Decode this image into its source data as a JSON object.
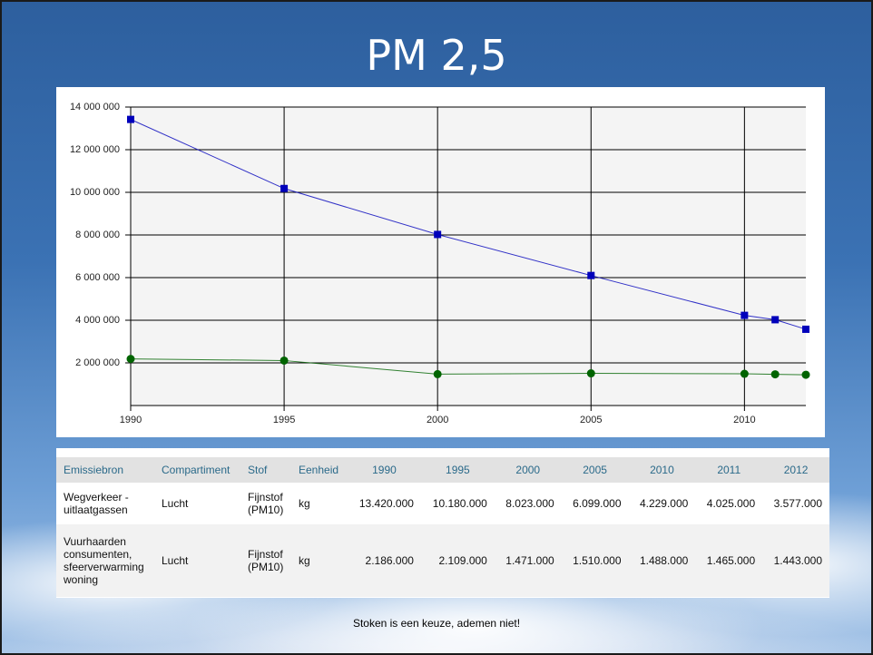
{
  "slide": {
    "title": "PM 2,5",
    "footer": "Stoken is een keuze, ademen niet!"
  },
  "chart_data": {
    "type": "line",
    "x": [
      1990,
      1995,
      2000,
      2005,
      2010,
      2011,
      2012
    ],
    "xlim": [
      1990,
      2012
    ],
    "xticks": [
      1990,
      1995,
      2000,
      2005,
      2010
    ],
    "ylim": [
      0,
      14000000
    ],
    "yticks": [
      {
        "value": 2000000,
        "label": "2 000 000"
      },
      {
        "value": 4000000,
        "label": "4 000 000"
      },
      {
        "value": 6000000,
        "label": "6 000 000"
      },
      {
        "value": 8000000,
        "label": "8 000 000"
      },
      {
        "value": 10000000,
        "label": "10 000 000"
      },
      {
        "value": 12000000,
        "label": "12 000 000"
      },
      {
        "value": 14000000,
        "label": "14 000 000"
      }
    ],
    "grid": true,
    "series": [
      {
        "color": "#0000bb",
        "marker": "square",
        "values": [
          13420000,
          10180000,
          8023000,
          6099000,
          4229000,
          4025000,
          3577000
        ]
      },
      {
        "color": "#006400",
        "marker": "circle",
        "values": [
          2186000,
          2109000,
          1471000,
          1510000,
          1488000,
          1465000,
          1443000
        ]
      }
    ]
  },
  "table": {
    "header": [
      "Emissiebron",
      "Compartiment",
      "Stof",
      "Eenheid",
      "1990",
      "1995",
      "2000",
      "2005",
      "2010",
      "2011",
      "2012"
    ],
    "rows": [
      [
        "Wegverkeer - uitlaatgassen",
        "Lucht",
        "Fijnstof (PM10)",
        "kg",
        "13.420.000",
        "10.180.000",
        "8.023.000",
        "6.099.000",
        "4.229.000",
        "4.025.000",
        "3.577.000"
      ],
      [
        "Vuurhaarden consumenten, sfeerverwarming woning",
        "Lucht",
        "Fijnstof (PM10)",
        "kg",
        "2.186.000",
        "2.109.000",
        "1.471.000",
        "1.510.000",
        "1.488.000",
        "1.465.000",
        "1.443.000"
      ]
    ]
  }
}
